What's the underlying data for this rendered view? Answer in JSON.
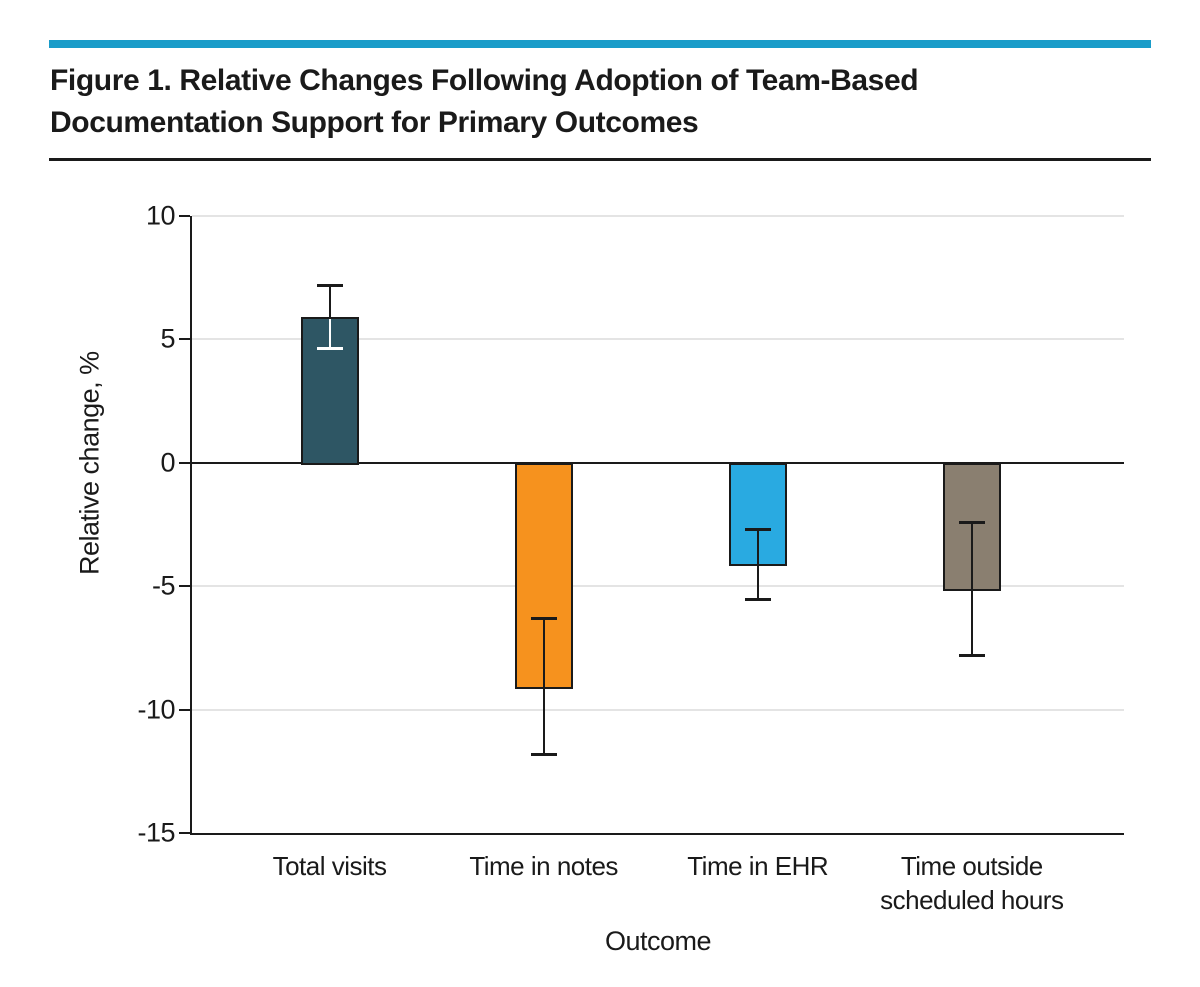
{
  "figure": {
    "title_lines": [
      "Figure 1. Relative Changes Following Adoption of Team-Based",
      "Documentation Support for Primary Outcomes"
    ],
    "accent_color": "#1a9cc9",
    "ink_color": "#1a1a1a"
  },
  "chart_data": {
    "type": "bar",
    "title": "",
    "xlabel": "Outcome",
    "ylabel": "Relative change, %",
    "categories": [
      "Total visits",
      "Time in notes",
      "Time in EHR",
      "Time outside scheduled hours"
    ],
    "values": [
      5.9,
      -9.1,
      -4.1,
      -5.1
    ],
    "error_low": [
      4.6,
      -11.8,
      -5.5,
      -7.8
    ],
    "error_high": [
      7.2,
      -6.3,
      -2.7,
      -2.4
    ],
    "bar_colors": [
      "#2e5664",
      "#f6921e",
      "#29aae1",
      "#8a7f70"
    ],
    "inner_whisker_colors": [
      "#ffffff",
      "#1a1a1a",
      "#1a1a1a",
      "#1a1a1a"
    ],
    "whisker_color": "#1a1a1a",
    "grid_color": "#e4e4e4",
    "ylim": [
      -15,
      10
    ],
    "yticks": [
      10,
      5,
      0,
      -5,
      -10,
      -15
    ],
    "grid": true,
    "legend": "none"
  }
}
